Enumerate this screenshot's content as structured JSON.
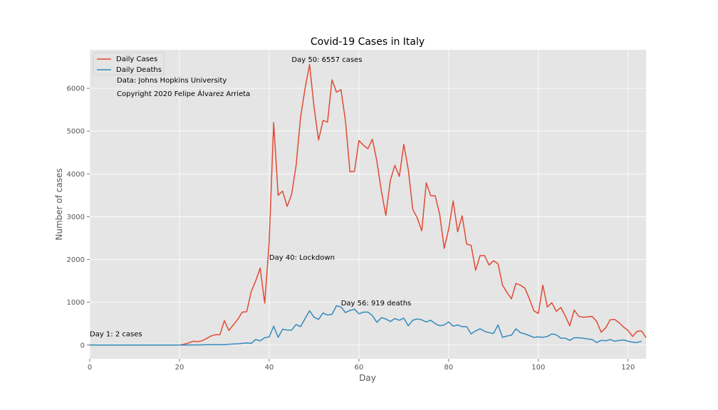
{
  "chart_data": {
    "type": "line",
    "title": "Covid-19 Cases in Italy",
    "xlabel": "Day",
    "ylabel": "Number of cases",
    "xlim": [
      0,
      124
    ],
    "ylim": [
      -320,
      6900
    ],
    "grid": true,
    "legend_position": "top-left",
    "x_ticks": [
      0,
      20,
      40,
      60,
      80,
      100,
      120
    ],
    "y_ticks": [
      0,
      1000,
      2000,
      3000,
      4000,
      5000,
      6000
    ],
    "series": [
      {
        "name": "Daily Cases",
        "color": "#e24a33",
        "x_start": 0,
        "values": [
          2,
          0,
          0,
          0,
          0,
          0,
          0,
          0,
          0,
          0,
          0,
          0,
          0,
          0,
          0,
          0,
          0,
          0,
          0,
          0,
          0,
          20,
          50,
          90,
          80,
          100,
          150,
          210,
          240,
          240,
          570,
          340,
          470,
          600,
          770,
          780,
          1250,
          1500,
          1800,
          980,
          2400,
          5200,
          3500,
          3600,
          3240,
          3520,
          4200,
          5330,
          6000,
          6557,
          5560,
          4790,
          5250,
          5210,
          6200,
          5910,
          5970,
          5240,
          4050,
          4060,
          4780,
          4670,
          4590,
          4810,
          4300,
          3600,
          3030,
          3850,
          4200,
          3940,
          4690,
          4100,
          3170,
          2970,
          2670,
          3790,
          3490,
          3490,
          3050,
          2260,
          2710,
          3370,
          2650,
          3020,
          2360,
          2330,
          1750,
          2090,
          2090,
          1870,
          1970,
          1900,
          1400,
          1230,
          1080,
          1440,
          1400,
          1330,
          1080,
          800,
          740,
          1400,
          890,
          990,
          790,
          880,
          680,
          450,
          820,
          670,
          650,
          660,
          670,
          550,
          300,
          400,
          590,
          600,
          520,
          420,
          340,
          200,
          320,
          330,
          170
        ]
      },
      {
        "name": "Daily Deaths",
        "color": "#348abd",
        "x_start": 0,
        "values": [
          0,
          0,
          0,
          0,
          0,
          0,
          0,
          0,
          0,
          0,
          0,
          0,
          0,
          0,
          0,
          0,
          0,
          0,
          0,
          0,
          0,
          1,
          2,
          3,
          5,
          5,
          7,
          9,
          10,
          10,
          8,
          20,
          25,
          30,
          40,
          50,
          40,
          130,
          100,
          170,
          190,
          440,
          180,
          370,
          350,
          350,
          480,
          430,
          620,
          800,
          650,
          600,
          750,
          700,
          720,
          920,
          890,
          760,
          810,
          840,
          730,
          770,
          770,
          690,
          530,
          640,
          610,
          550,
          620,
          580,
          630,
          450,
          580,
          610,
          590,
          540,
          580,
          500,
          450,
          470,
          540,
          440,
          470,
          430,
          430,
          260,
          330,
          380,
          320,
          290,
          270,
          470,
          180,
          210,
          230,
          380,
          290,
          260,
          220,
          180,
          190,
          180,
          200,
          260,
          240,
          160,
          160,
          110,
          170,
          170,
          160,
          140,
          130,
          60,
          110,
          100,
          130,
          90,
          110,
          120,
          90,
          70,
          60,
          90
        ]
      }
    ],
    "annotations": [
      {
        "x": 0,
        "y": 200,
        "text": "Day 1: 2 cases"
      },
      {
        "x": 40,
        "y": 1990,
        "text": "Day 40: Lockdown"
      },
      {
        "x": 45,
        "y": 6620,
        "text": "Day 50: 6557 cases"
      },
      {
        "x": 56,
        "y": 930,
        "text": "Day 56: 919 deaths"
      }
    ],
    "notes": [
      "Data: Johns Hopkins University",
      "Copyright 2020 Felipe Álvarez Arrieta"
    ]
  }
}
